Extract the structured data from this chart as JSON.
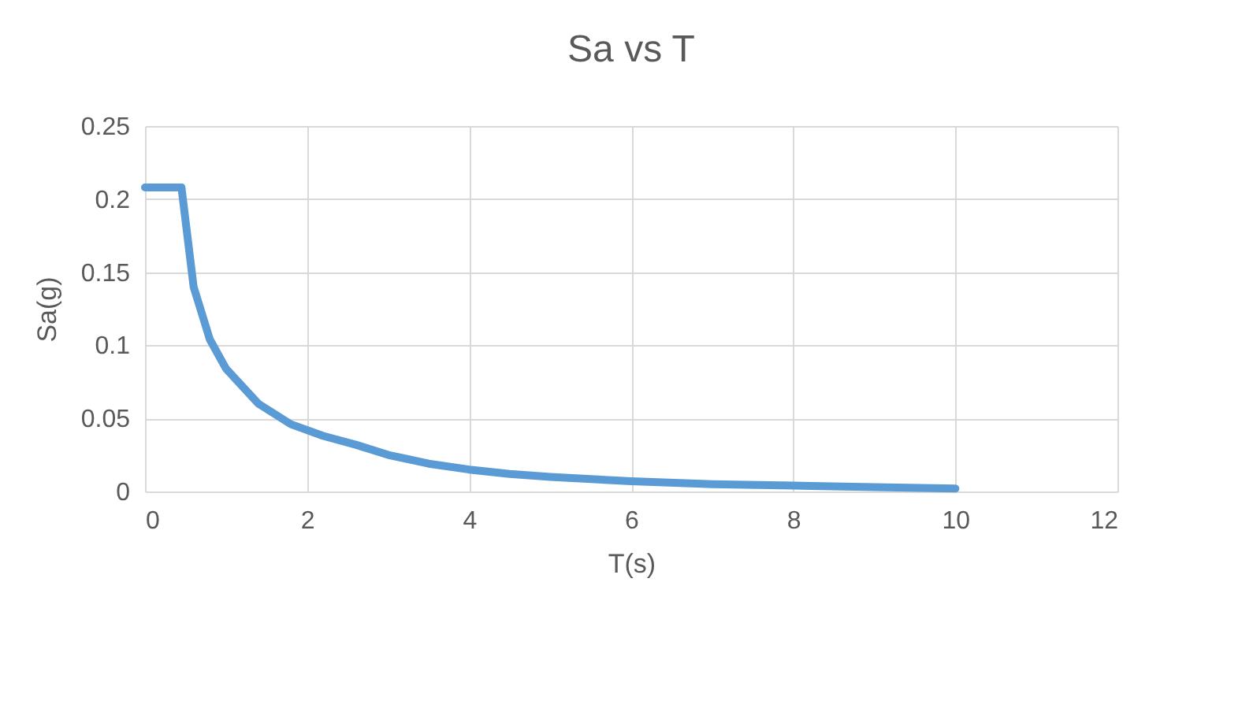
{
  "chart_data": {
    "type": "line",
    "title": "Sa vs T",
    "xlabel": "T(s)",
    "ylabel": "Sa(g)",
    "x": [
      0,
      0.45,
      0.6,
      0.8,
      1,
      1.4,
      1.8,
      2.2,
      2.6,
      3,
      3.5,
      4,
      4.5,
      5,
      6,
      7,
      8,
      9,
      10
    ],
    "series": [
      {
        "color": "#5b9bd5",
        "values": [
          0.208,
          0.208,
          0.14,
          0.104,
          0.084,
          0.06,
          0.046,
          0.038,
          0.032,
          0.025,
          0.019,
          0.015,
          0.012,
          0.01,
          0.007,
          0.005,
          0.004,
          0.003,
          0.002
        ]
      }
    ],
    "xlim": [
      0,
      12
    ],
    "xticks": [
      0,
      2,
      4,
      6,
      8,
      10,
      12
    ],
    "ylim": [
      0,
      0.25
    ],
    "yticks": [
      0,
      0.05,
      0.1,
      0.15,
      0.2,
      0.25
    ],
    "grid": true,
    "marker": "none",
    "line_style": "solid"
  }
}
